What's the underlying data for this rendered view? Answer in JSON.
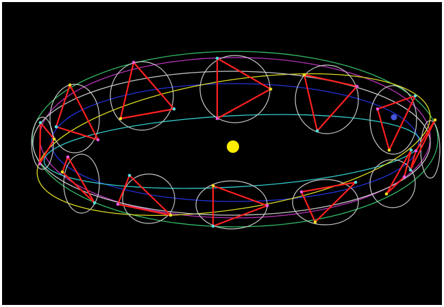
{
  "scene": {
    "background": "#000000",
    "sun_color": "#ffee00",
    "earth_color": "#4455dd",
    "colors": {
      "circle": "#c8c8c8",
      "triangle": "#ff2020",
      "outer_ring": "#33bb66",
      "mid_ring": "#bb33bb",
      "inner_ring": "#2233dd",
      "cyan_ring": "#33cccc",
      "yellow_ring": "#dddd22",
      "vertex_yellow": "#eedd22",
      "vertex_magenta": "#ee55dd",
      "vertex_cyan": "#55dddd"
    }
  }
}
